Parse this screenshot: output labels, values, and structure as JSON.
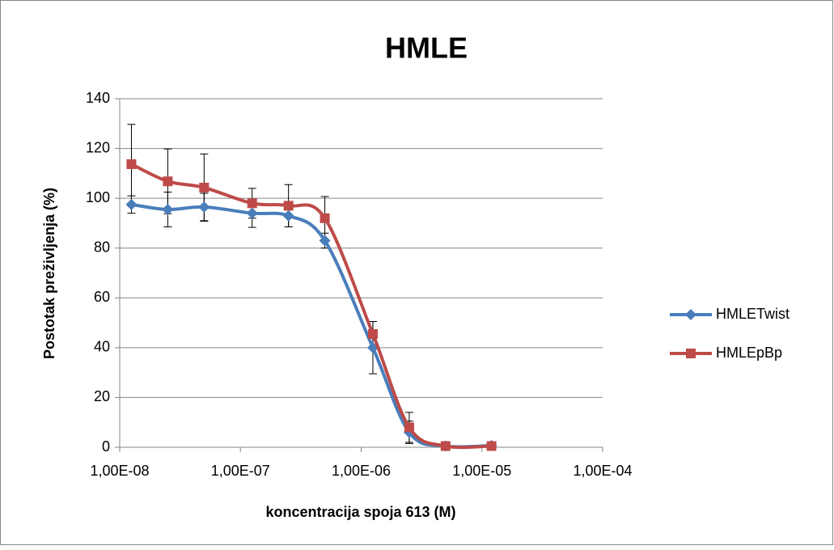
{
  "chart_data": {
    "type": "line",
    "title": "HMLE",
    "x_label": "koncentracija spoja 613 (M)",
    "y_label": "Postotak preživljenja (%)",
    "x_scale": "log",
    "x": [
      1.25e-08,
      2.5e-08,
      5e-08,
      1.25e-07,
      2.5e-07,
      5e-07,
      1.25e-06,
      2.5e-06,
      5e-06,
      1.2e-05
    ],
    "series": [
      {
        "name": "HMLETwist",
        "color": "#4a7ebb",
        "marker": "diamond",
        "values": [
          97.5,
          95.5,
          96.5,
          94,
          93,
          83,
          40,
          6,
          0.5,
          0.7
        ],
        "errors": [
          3.5,
          7,
          5.5,
          5.7,
          4.5,
          3,
          10.5,
          4.5,
          0,
          0
        ]
      },
      {
        "name": "HMLEpBp",
        "color": "#be4b48",
        "marker": "square",
        "values": [
          113.7,
          106.8,
          104.3,
          98,
          97,
          92,
          45.5,
          8,
          0.5,
          0.5
        ],
        "errors": [
          16,
          13,
          13.5,
          6,
          8.5,
          8.7,
          5,
          6,
          0,
          0
        ]
      }
    ],
    "xlim": [
      1e-08,
      0.0001
    ],
    "xticks": [
      {
        "value": 1e-08,
        "label": "1,00E-08"
      },
      {
        "value": 1e-07,
        "label": "1,00E-07"
      },
      {
        "value": 1e-06,
        "label": "1,00E-06"
      },
      {
        "value": 1e-05,
        "label": "1,00E-05"
      },
      {
        "value": 0.0001,
        "label": "1,00E-04"
      }
    ],
    "ylim": [
      0,
      140
    ],
    "yticks": [
      0,
      20,
      40,
      60,
      80,
      100,
      120,
      140
    ],
    "grid": true,
    "legend": "right"
  }
}
